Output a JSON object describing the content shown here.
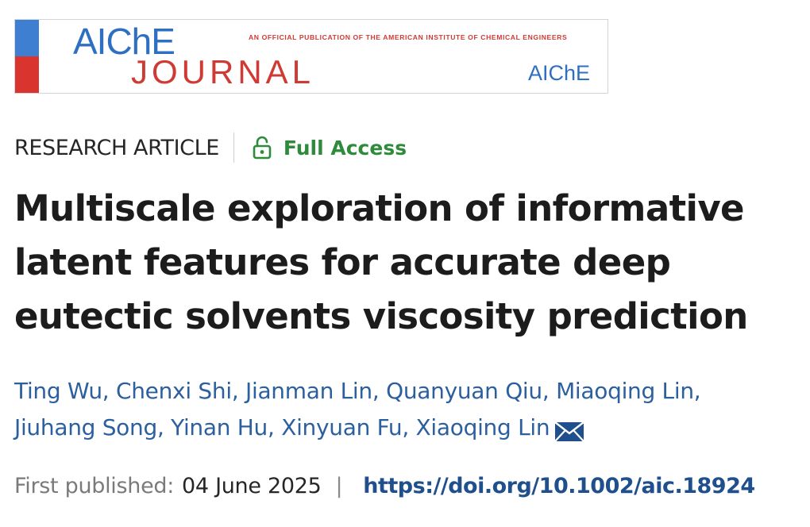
{
  "journal": {
    "logo_top": "AIChE",
    "logo_bottom": "JOURNAL",
    "tagline": "An Official Publication of the American Institute of Chemical Engineers",
    "society": "AIChE",
    "colors": {
      "blue": "#2f6fc2",
      "red": "#cf3a34"
    }
  },
  "article": {
    "type": "RESEARCH ARTICLE",
    "access_label": "Full Access",
    "access_icon": "lock-open-icon",
    "title_lines": [
      "Multiscale exploration of informative",
      "latent features for accurate deep",
      "eutectic solvents viscosity prediction"
    ],
    "authors": [
      "Ting Wu",
      "Chenxi Shi",
      "Jianman Lin",
      "Quanyuan Qiu",
      "Miaoqing Lin",
      "Jiuhang Song",
      "Yinan Hu",
      "Xinyuan Fu",
      "Xiaoqing Lin"
    ],
    "corresponding_icon": "mail-icon",
    "first_published_label": "First published:",
    "first_published_date": "04 June 2025",
    "separator": "|",
    "doi": "https://doi.org/10.1002/aic.18924"
  },
  "colors": {
    "access_green": "#2e8b3c",
    "author_blue": "#2c5f9e",
    "doi_blue": "#1f4f8c"
  }
}
